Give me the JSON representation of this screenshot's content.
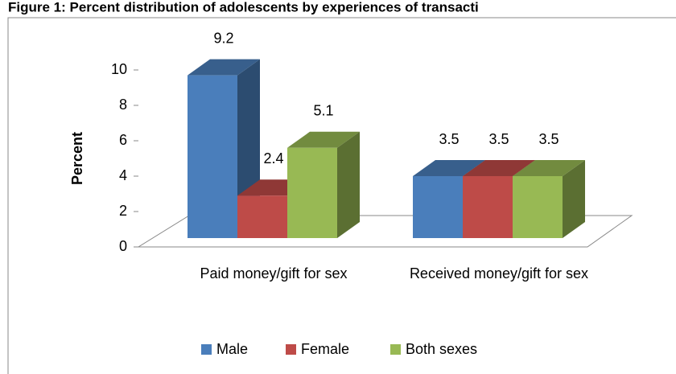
{
  "chart_data": {
    "type": "bar3d",
    "title": "Figure 1: Percent distribution of adolescents by experiences of transacti",
    "y_label": "Percent",
    "categories": [
      "Paid money/gift for sex",
      "Received money/gift for sex"
    ],
    "series": [
      {
        "name": "Male",
        "color": "#4a7ebb",
        "values": [
          9.2,
          3.5
        ]
      },
      {
        "name": "Female",
        "color": "#be4b48",
        "values": [
          2.4,
          3.5
        ]
      },
      {
        "name": "Both sexes",
        "color": "#98b954",
        "values": [
          5.1,
          3.5
        ]
      }
    ],
    "ylim": [
      0,
      10
    ],
    "yticks": [
      0,
      2,
      4,
      6,
      8,
      10
    ],
    "legend": "bottom"
  }
}
